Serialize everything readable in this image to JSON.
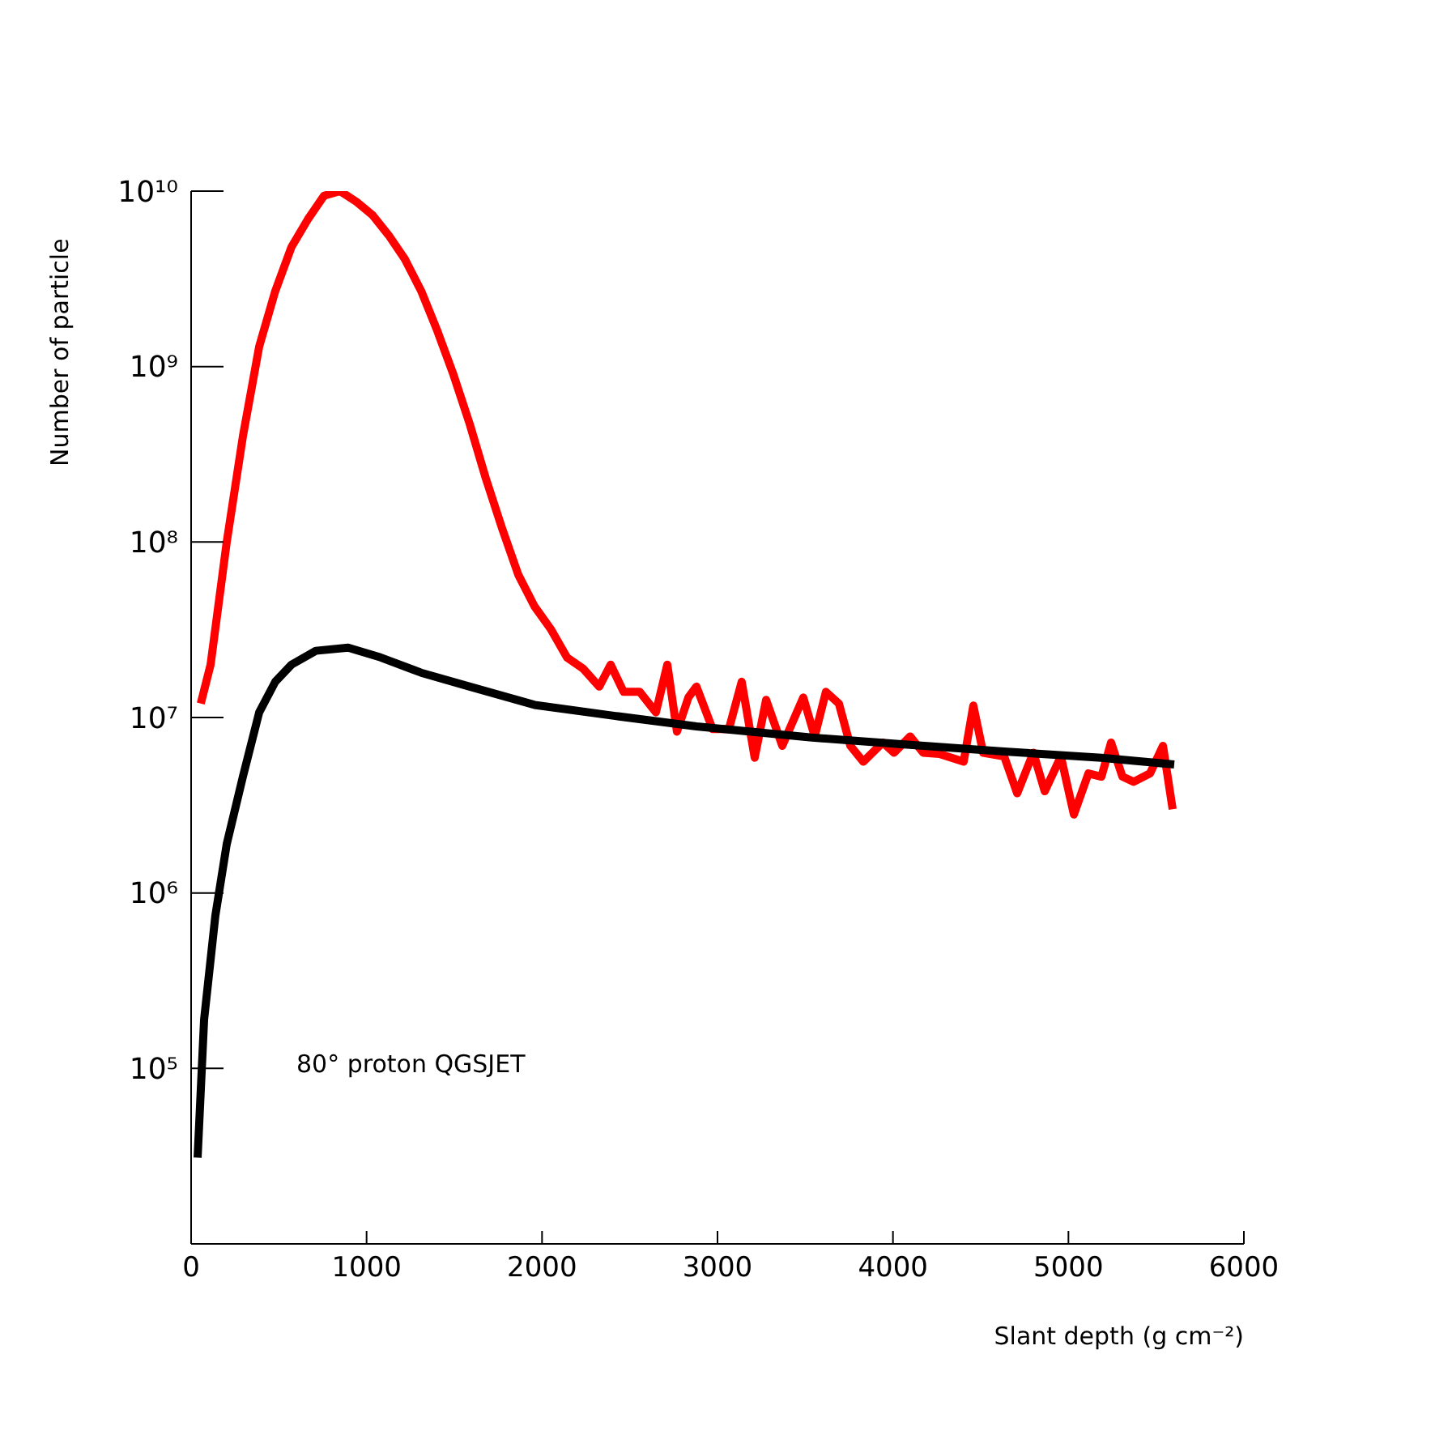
{
  "chart_data": {
    "type": "line",
    "xlabel": "Slant depth (g cm⁻²)",
    "ylabel": "Number of particle",
    "annotations": [
      "80° proton QGSJET"
    ],
    "xlim": [
      0,
      6000
    ],
    "xticks": [
      0,
      1000,
      2000,
      3000,
      4000,
      5000,
      6000
    ],
    "ylim": [
      10000,
      10000000000
    ],
    "log": "y",
    "yticks": [
      {
        "value": 100000,
        "label": "10⁵"
      },
      {
        "value": 1000000,
        "label": "10⁶"
      },
      {
        "value": 10000000,
        "label": "10⁷"
      },
      {
        "value": 100000000,
        "label": "10⁸"
      },
      {
        "value": 1000000000,
        "label": "10⁹"
      },
      {
        "value": 10000000000,
        "label": "10¹⁰"
      }
    ],
    "grid": false,
    "marker": "none",
    "line_style": "solid",
    "series": [
      {
        "color": "#ff0000",
        "x": [
          55,
          111,
          203,
          295,
          388,
          480,
          572,
          665,
          757,
          849,
          942,
          1034,
          1126,
          1218,
          1311,
          1403,
          1495,
          1588,
          1680,
          1772,
          1865,
          1957,
          2049,
          2142,
          2234,
          2326,
          2391,
          2465,
          2557,
          2649,
          2714,
          2769,
          2834,
          2880,
          2972,
          3065,
          3138,
          3212,
          3277,
          3369,
          3489,
          3554,
          3618,
          3692,
          3757,
          3831,
          3942,
          4006,
          4098,
          4172,
          4265,
          4403,
          4458,
          4514,
          4634,
          4708,
          4800,
          4865,
          4957,
          5031,
          5114,
          5188,
          5243,
          5308,
          5372,
          5465,
          5539,
          5594
        ],
        "values": [
          12000000,
          20000000,
          100000000,
          400000000,
          1300000000,
          2700000000,
          4800000000,
          6900000000,
          9400000000,
          10000000000,
          8700000000,
          7300000000,
          5600000000,
          4100000000,
          2700000000,
          1600000000,
          900000000,
          470000000,
          230000000,
          120000000,
          65000000,
          43000000,
          32000000,
          22000000,
          19000000,
          15000000,
          20000000,
          14000000,
          14000000,
          10700000,
          20000000,
          8300000,
          13000000,
          15000000,
          8600000,
          8600000,
          16000000,
          5900000,
          12600000,
          6900000,
          13000000,
          7800000,
          14000000,
          12000000,
          6900000,
          5600000,
          7200000,
          6300000,
          7800000,
          6300000,
          6200000,
          5600000,
          11700000,
          6300000,
          6000000,
          3700000,
          6300000,
          3800000,
          6000000,
          2800000,
          4800000,
          4600000,
          7200000,
          4600000,
          4300000,
          4800000,
          6900000,
          3000000
        ]
      },
      {
        "color": "#000000",
        "x": [
          37,
          74,
          138,
          203,
          295,
          388,
          480,
          572,
          711,
          895,
          1080,
          1311,
          1588,
          1957,
          2418,
          2880,
          3526,
          4080,
          4634,
          5188,
          5603
        ],
        "values": [
          31000,
          190000,
          740000,
          1900000,
          4600000,
          10700000,
          16000000,
          20000000,
          24000000,
          25000000,
          22000000,
          18000000,
          15000000,
          11800000,
          10200000,
          8900000,
          7700000,
          7000000,
          6400000,
          5900000,
          5400000
        ]
      }
    ]
  }
}
